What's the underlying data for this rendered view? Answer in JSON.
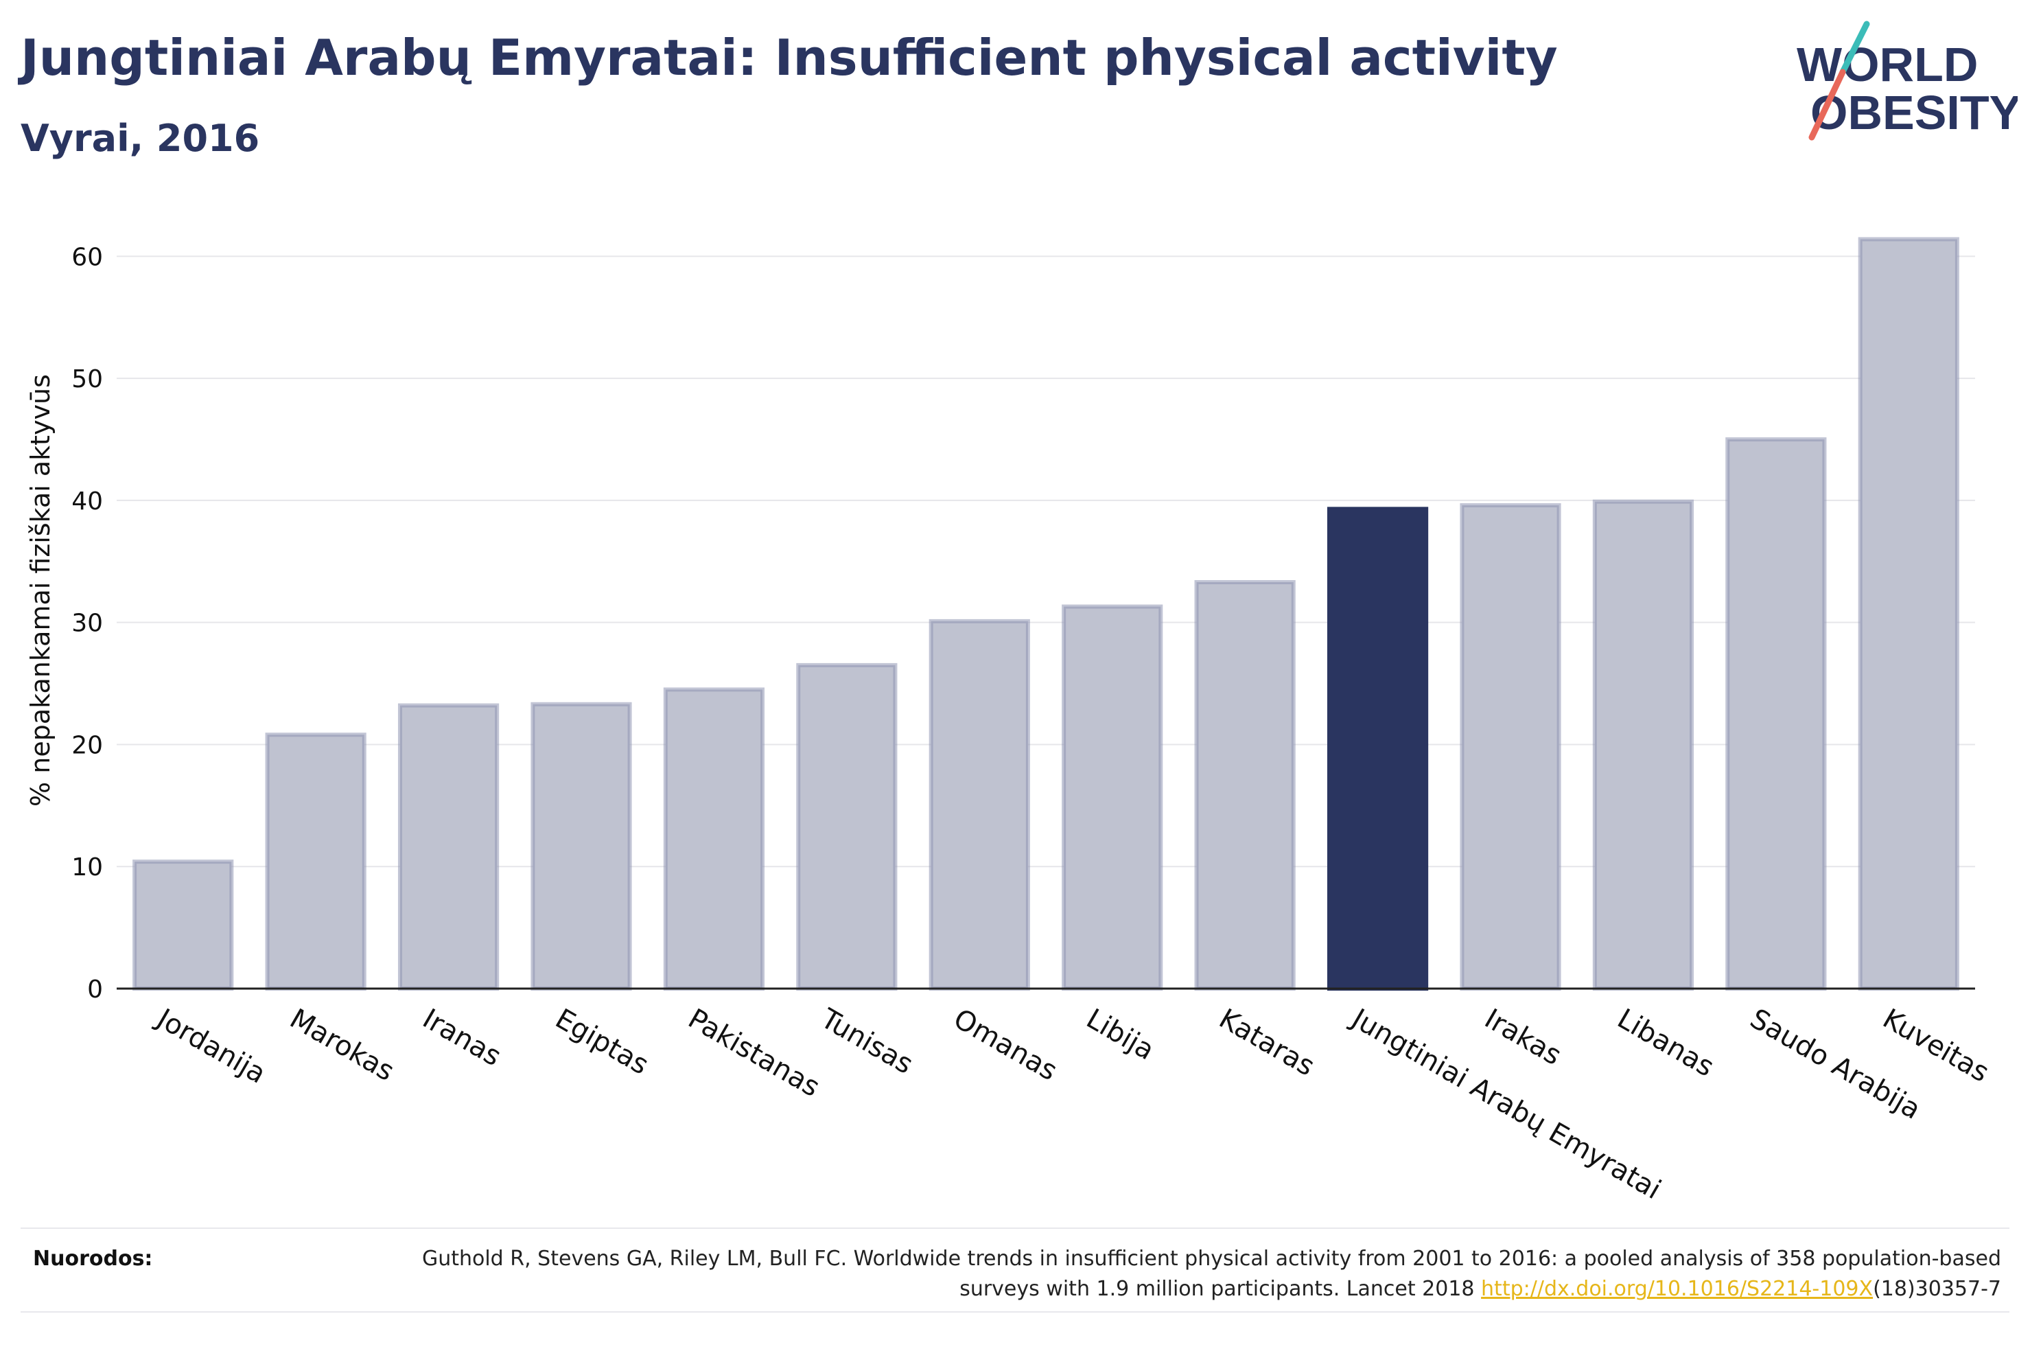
{
  "title": "Jungtiniai Arabų Emyratai: Insufficient physical activity",
  "subtitle": "Vyrai, 2016",
  "logo": {
    "line1": "WORLD",
    "line2": "OBESITY"
  },
  "colors": {
    "highlight": "#2a3560",
    "bar": "#bfc2d0",
    "bar_edge": "#9096b2",
    "text": "#2a3560"
  },
  "chart_data": {
    "type": "bar",
    "ylabel": "% nepakankamai fiziškai aktyvūs",
    "xlabel": "",
    "ylim": [
      0,
      63
    ],
    "yticks": [
      0,
      10,
      20,
      30,
      40,
      50,
      60
    ],
    "grid": true,
    "highlight": "Jungtiniai Arabų Emyratai",
    "categories": [
      "Jordanija",
      "Marokas",
      "Iranas",
      "Egiptas",
      "Pakistanas",
      "Tunisas",
      "Omanas",
      "Libija",
      "Kataras",
      "Jungtiniai Arabų Emyratai",
      "Irakas",
      "Libanas",
      "Saudo Arabija",
      "Kuveitas"
    ],
    "values": [
      10.4,
      20.8,
      23.2,
      23.3,
      24.5,
      26.5,
      30.1,
      31.3,
      33.3,
      39.3,
      39.6,
      39.9,
      45.0,
      61.4
    ]
  },
  "references": {
    "label": "Nuorodos:",
    "text_before": "Guthold R, Stevens GA, Riley LM, Bull FC. Worldwide trends in insufficient physical activity from 2001 to 2016: a pooled analysis of 358 population-based surveys with 1.9 million participants. Lancet 2018 ",
    "link": "http://dx.doi.org/10.1016/S2214-109X",
    "text_after": "(18)30357-7"
  }
}
